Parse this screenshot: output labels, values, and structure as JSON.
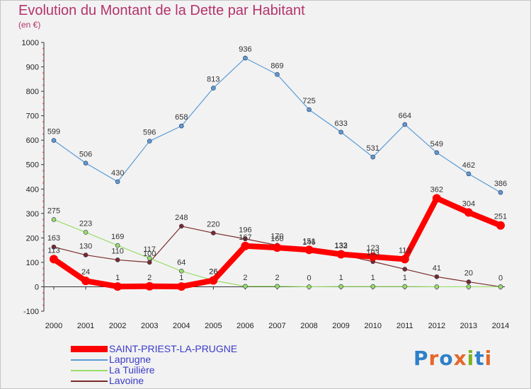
{
  "title": "Evolution du Montant de la Dette par Habitant",
  "subtitle": "(en €)",
  "logo": {
    "text": "Proxiti",
    "colors": [
      "#2f80c9",
      "#e5672b",
      "#2f80c9",
      "#e5672b",
      "#7ab51d",
      "#2f80c9",
      "#e5672b"
    ]
  },
  "chart_data": {
    "type": "line",
    "title": "Evolution du Montant de la Dette par Habitant",
    "subtitle": "(en €)",
    "x": [
      2000,
      2001,
      2002,
      2003,
      2004,
      2005,
      2006,
      2007,
      2008,
      2009,
      2010,
      2011,
      2012,
      2013,
      2014
    ],
    "ylim": [
      -100,
      1000
    ],
    "yticks": [
      -100,
      0,
      100,
      200,
      300,
      400,
      500,
      600,
      700,
      800,
      900,
      1000
    ],
    "grid": false,
    "legend_position": "bottom-left",
    "series": [
      {
        "name": "SAINT-PRIEST-LA-PRUGNE",
        "color": "#ff0000",
        "values": [
          113,
          24,
          1,
          2,
          1,
          26,
          167,
          160,
          151,
          133,
          123,
          113,
          362,
          304,
          251
        ],
        "labels": [
          "113",
          "24",
          "1",
          "2",
          "1",
          "26",
          "167",
          "160",
          "151",
          "133",
          "123",
          "113",
          "362",
          "304",
          "251"
        ]
      },
      {
        "name": "Laprugne",
        "color": "#5b9bd5",
        "values": [
          599,
          506,
          430,
          596,
          658,
          813,
          936,
          869,
          725,
          633,
          531,
          664,
          549,
          462,
          386
        ],
        "labels": [
          "599",
          "506",
          "430",
          "596",
          "658",
          "813",
          "936",
          "869",
          "725",
          "633",
          "531",
          "664",
          "549",
          "462",
          "386"
        ]
      },
      {
        "name": "La Tuilière",
        "color": "#99dd66",
        "values": [
          275,
          223,
          169,
          117,
          64,
          26,
          2,
          2,
          0,
          1,
          1,
          1,
          0,
          0,
          0
        ],
        "labels": [
          "275",
          "223",
          "169",
          "117",
          "64",
          "26",
          "2",
          "2",
          "0",
          "1",
          "1",
          "1",
          "",
          "",
          ""
        ]
      },
      {
        "name": "Lavoine",
        "color": "#7a2a2a",
        "values": [
          163,
          130,
          110,
          100,
          248,
          220,
          196,
          170,
          146,
          132,
          103,
          72,
          41,
          20,
          0
        ],
        "labels": [
          "163",
          "130",
          "110",
          "100",
          "248",
          "220",
          "196",
          "170",
          "146",
          "132",
          "103",
          "",
          "41",
          "20",
          "0"
        ]
      }
    ]
  }
}
